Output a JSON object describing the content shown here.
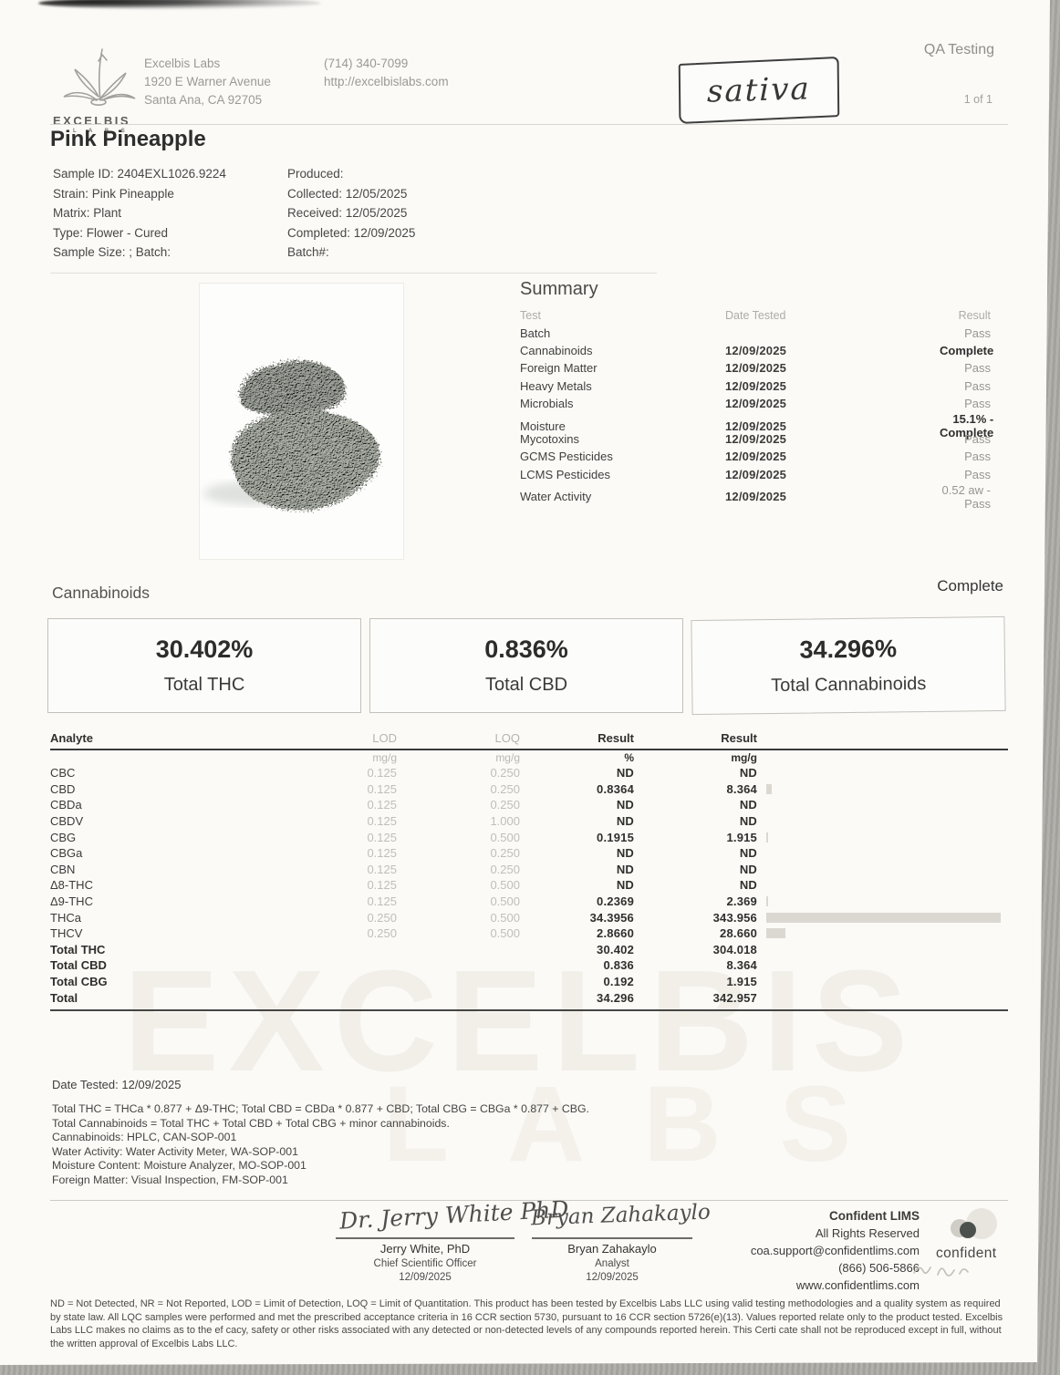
{
  "header": {
    "lab_lines": [
      "Excelbis Labs",
      "1920 E Warner Avenue",
      "Santa Ana, CA 92705"
    ],
    "contact_lines": [
      "(714) 340-7099",
      "http://excelbislabs.com"
    ],
    "logo_word": "EXCELBIS",
    "logo_sub": "L A B S",
    "report_type": "QA Testing",
    "page_indicator": "1 of 1",
    "handwritten_note": "sativa"
  },
  "product": {
    "title": "Pink Pineapple"
  },
  "sample_info": {
    "left": [
      "Sample ID: 2404EXL1026.9224",
      "Strain: Pink Pineapple",
      "Matrix: Plant",
      "Type: Flower - Cured",
      "Sample Size: ; Batch:"
    ],
    "right": [
      "Produced:",
      "Collected: 12/05/2025",
      "Received: 12/05/2025",
      "Completed: 12/09/2025",
      "Batch#:"
    ]
  },
  "summary": {
    "title": "Summary",
    "columns": {
      "test": "Test",
      "date": "Date Tested",
      "result": "Result"
    },
    "rows": [
      {
        "test": "Batch",
        "date": "",
        "result": "Pass"
      },
      {
        "test": "Cannabinoids",
        "date": "12/09/2025",
        "result": "Complete"
      },
      {
        "test": "Foreign Matter",
        "date": "12/09/2025",
        "result": "Pass"
      },
      {
        "test": "Heavy Metals",
        "date": "12/09/2025",
        "result": "Pass"
      },
      {
        "test": "Microbials",
        "date": "12/09/2025",
        "result": "Pass"
      },
      {
        "test": "Moisture",
        "date": "12/09/2025",
        "result": "15.1% - Complete"
      },
      {
        "test": "Mycotoxins",
        "date": "12/09/2025",
        "result": "Pass"
      },
      {
        "test": "GCMS Pesticides",
        "date": "12/09/2025",
        "result": "Pass"
      },
      {
        "test": "LCMS Pesticides",
        "date": "12/09/2025",
        "result": "Pass"
      },
      {
        "test": "Water Activity",
        "date": "12/09/2025",
        "result": "0.52 aw - Pass"
      }
    ]
  },
  "cannabinoids": {
    "section_title": "Cannabinoids",
    "status": "Complete",
    "totals": [
      {
        "value": "30.402%",
        "label": "Total THC"
      },
      {
        "value": "0.836%",
        "label": "Total CBD"
      },
      {
        "value": "34.296%",
        "label": "Total Cannabinoids"
      }
    ],
    "table": {
      "headers": {
        "analyte": "Analyte",
        "lod": "LOD",
        "loq": "LOQ",
        "result_pct": "Result",
        "result_mg": "Result"
      },
      "units": {
        "lod": "mg/g",
        "loq": "mg/g",
        "result_pct": "%",
        "result_mg": "mg/g"
      },
      "bar_scale_mg_g": 350,
      "rows": [
        {
          "analyte": "CBC",
          "lod": "0.125",
          "loq": "0.250",
          "pct": "ND",
          "mg": "ND",
          "bar": 0
        },
        {
          "analyte": "CBD",
          "lod": "0.125",
          "loq": "0.250",
          "pct": "0.8364",
          "mg": "8.364",
          "bar": 8.364
        },
        {
          "analyte": "CBDa",
          "lod": "0.125",
          "loq": "0.250",
          "pct": "ND",
          "mg": "ND",
          "bar": 0
        },
        {
          "analyte": "CBDV",
          "lod": "0.125",
          "loq": "1.000",
          "pct": "ND",
          "mg": "ND",
          "bar": 0
        },
        {
          "analyte": "CBG",
          "lod": "0.125",
          "loq": "0.500",
          "pct": "0.1915",
          "mg": "1.915",
          "bar": 1.915
        },
        {
          "analyte": "CBGa",
          "lod": "0.125",
          "loq": "0.250",
          "pct": "ND",
          "mg": "ND",
          "bar": 0
        },
        {
          "analyte": "CBN",
          "lod": "0.125",
          "loq": "0.250",
          "pct": "ND",
          "mg": "ND",
          "bar": 0
        },
        {
          "analyte": "Δ8-THC",
          "lod": "0.125",
          "loq": "0.500",
          "pct": "ND",
          "mg": "ND",
          "bar": 0
        },
        {
          "analyte": "Δ9-THC",
          "lod": "0.125",
          "loq": "0.500",
          "pct": "0.2369",
          "mg": "2.369",
          "bar": 2.369
        },
        {
          "analyte": "THCa",
          "lod": "0.250",
          "loq": "0.500",
          "pct": "34.3956",
          "mg": "343.956",
          "bar": 343.956
        },
        {
          "analyte": "THCV",
          "lod": "0.250",
          "loq": "0.500",
          "pct": "2.8660",
          "mg": "28.660",
          "bar": 28.66
        },
        {
          "analyte": "Total THC",
          "lod": "",
          "loq": "",
          "pct": "30.402",
          "mg": "304.018",
          "bar": 0
        },
        {
          "analyte": "Total CBD",
          "lod": "",
          "loq": "",
          "pct": "0.836",
          "mg": "8.364",
          "bar": 0
        },
        {
          "analyte": "Total CBG",
          "lod": "",
          "loq": "",
          "pct": "0.192",
          "mg": "1.915",
          "bar": 0
        },
        {
          "analyte": "Total",
          "lod": "",
          "loq": "",
          "pct": "34.296",
          "mg": "342.957",
          "bar": 0
        }
      ]
    }
  },
  "methodology": {
    "date_tested": "Date Tested: 12/09/2025",
    "lines": [
      "Total THC = THCa * 0.877 + Δ9-THC; Total CBD = CBDa * 0.877 + CBD; Total CBG = CBGa * 0.877 + CBG.",
      "Total Cannabinoids = Total THC + Total CBD + Total CBG + minor cannabinoids.",
      "Cannabinoids: HPLC, CAN-SOP-001",
      "Water Activity: Water Activity Meter, WA-SOP-001",
      "Moisture Content: Moisture Analyzer, MO-SOP-001",
      "Foreign Matter: Visual Inspection, FM-SOP-001"
    ]
  },
  "signatures": [
    {
      "script": "Dr. Jerry White PhD",
      "name": "Jerry White, PhD",
      "role": "Chief Scientific Officer",
      "date": "12/09/2025"
    },
    {
      "script": "Bryan Zahakaylo",
      "name": "Bryan Zahakaylo",
      "role": "Analyst",
      "date": "12/09/2025"
    }
  ],
  "lims": {
    "lines": [
      "Confident LIMS",
      "All Rights Reserved",
      "coa.support@confidentlims.com",
      "(866) 506-5866",
      "www.confidentlims.com"
    ],
    "logo_text": "confident"
  },
  "watermark": {
    "line1": "EXCELBIS",
    "line2": "LABS"
  },
  "disclaimer": "ND = Not Detected, NR = Not Reported, LOD = Limit of Detection, LOQ = Limit of Quantitation. This product has been tested by Excelbis Labs LLC using valid testing methodologies and a quality system as required by state law. All LQC samples were performed and met the prescribed acceptance criteria in 16 CCR section 5730, pursuant to 16 CCR section 5726(e)(13). Values reported relate only to the product tested. Excelbis Labs LLC makes no claims as to the ef cacy, safety or other risks associated with any detected or non-detected levels of any compounds reported herein. This Certi cate shall not be reproduced except in full, without the written approval of Excelbis Labs LLC.",
  "colors": {
    "paper": "#fbfaf7",
    "ink": "#3c3c3a",
    "muted": "#a6a49e",
    "bar": "#dbd8d2"
  }
}
